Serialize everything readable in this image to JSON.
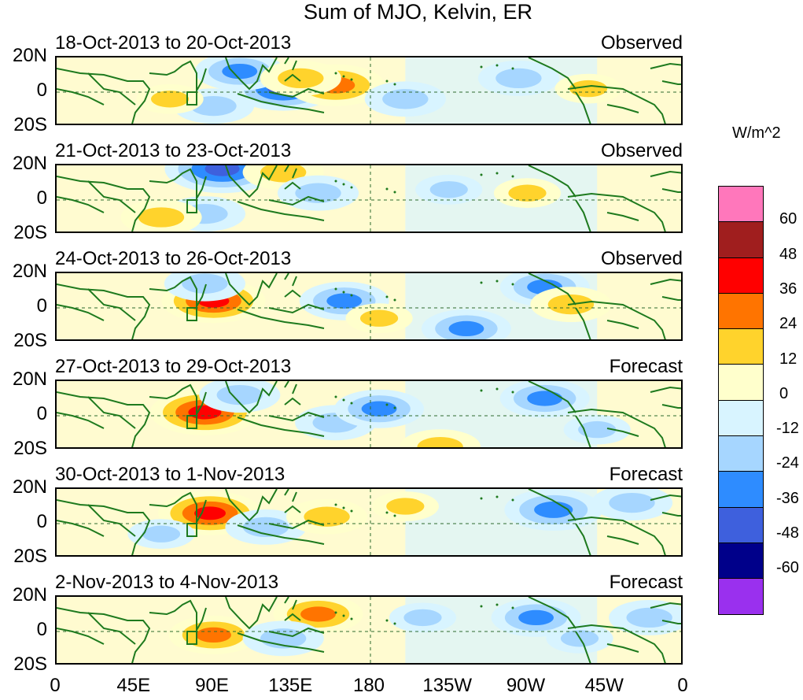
{
  "chart_data": {
    "type": "heatmap",
    "title": "Sum of MJO, Kelvin, ER",
    "units": "W/m^2",
    "x_tick_labels": [
      "0",
      "45E",
      "90E",
      "135E",
      "180",
      "135W",
      "90W",
      "45W",
      "0"
    ],
    "y_tick_labels": [
      "20N",
      "0",
      "20S"
    ],
    "colorbar": {
      "levels": [
        "60",
        "48",
        "36",
        "24",
        "12",
        "0",
        "-12",
        "-24",
        "-36",
        "-48",
        "-60"
      ],
      "colors": [
        "#ff77bb",
        "#a01e1e",
        "#ff0000",
        "#ff7400",
        "#ffd32c",
        "#ffffcc",
        "#d8f4ff",
        "#a6d6ff",
        "#2e8cff",
        "#3e60dd",
        "#00008a",
        "#9a30ee"
      ]
    },
    "panels": [
      {
        "period": "18-Oct-2013 to 20-Oct-2013",
        "status": "Observed"
      },
      {
        "period": "21-Oct-2013 to 23-Oct-2013",
        "status": "Observed"
      },
      {
        "period": "24-Oct-2013 to 26-Oct-2013",
        "status": "Observed"
      },
      {
        "period": "27-Oct-2013 to 29-Oct-2013",
        "status": "Forecast"
      },
      {
        "period": "30-Oct-2013 to 1-Nov-2013",
        "status": "Forecast"
      },
      {
        "period": "2-Nov-2013 to 4-Nov-2013",
        "status": "Forecast"
      }
    ],
    "anomalies": [
      [
        {
          "lon": 130,
          "lat": 2,
          "v": -40
        },
        {
          "lon": 105,
          "lat": 12,
          "v": -30
        },
        {
          "lon": 90,
          "lat": -8,
          "v": -24
        },
        {
          "lon": 160,
          "lat": 4,
          "v": 36
        },
        {
          "lon": 140,
          "lat": 8,
          "v": 24
        },
        {
          "lon": 65,
          "lat": -4,
          "v": 14
        },
        {
          "lon": 200,
          "lat": -4,
          "v": -24
        },
        {
          "lon": 265,
          "lat": 8,
          "v": -24
        },
        {
          "lon": 305,
          "lat": 2,
          "v": 14
        }
      ],
      [
        {
          "lon": 95,
          "lat": 18,
          "v": -48
        },
        {
          "lon": 85,
          "lat": -8,
          "v": -24
        },
        {
          "lon": 60,
          "lat": -10,
          "v": 24
        },
        {
          "lon": 130,
          "lat": 16,
          "v": 24
        },
        {
          "lon": 150,
          "lat": 4,
          "v": -24
        },
        {
          "lon": 225,
          "lat": 6,
          "v": -14
        },
        {
          "lon": 270,
          "lat": 4,
          "v": 14
        }
      ],
      [
        {
          "lon": 90,
          "lat": 4,
          "v": 40
        },
        {
          "lon": 85,
          "lat": 14,
          "v": -24
        },
        {
          "lon": 165,
          "lat": 4,
          "v": -30
        },
        {
          "lon": 185,
          "lat": -6,
          "v": 14
        },
        {
          "lon": 235,
          "lat": -12,
          "v": -30
        },
        {
          "lon": 280,
          "lat": 12,
          "v": -30
        },
        {
          "lon": 295,
          "lat": 2,
          "v": 24
        }
      ],
      [
        {
          "lon": 85,
          "lat": 2,
          "v": 44
        },
        {
          "lon": 105,
          "lat": 12,
          "v": -24
        },
        {
          "lon": 160,
          "lat": -4,
          "v": -24
        },
        {
          "lon": 185,
          "lat": 4,
          "v": -30
        },
        {
          "lon": 220,
          "lat": -18,
          "v": 24
        },
        {
          "lon": 280,
          "lat": 10,
          "v": -30
        },
        {
          "lon": 310,
          "lat": -8,
          "v": -14
        }
      ],
      [
        {
          "lon": 88,
          "lat": 6,
          "v": 40
        },
        {
          "lon": 120,
          "lat": -2,
          "v": -24
        },
        {
          "lon": 155,
          "lat": 4,
          "v": 24
        },
        {
          "lon": 200,
          "lat": 10,
          "v": 14
        },
        {
          "lon": 285,
          "lat": 8,
          "v": -36
        },
        {
          "lon": 330,
          "lat": 12,
          "v": -24
        },
        {
          "lon": 60,
          "lat": -6,
          "v": -14
        }
      ],
      [
        {
          "lon": 90,
          "lat": -2,
          "v": 30
        },
        {
          "lon": 150,
          "lat": 10,
          "v": 30
        },
        {
          "lon": 130,
          "lat": -4,
          "v": -24
        },
        {
          "lon": 210,
          "lat": 8,
          "v": -14
        },
        {
          "lon": 275,
          "lat": 8,
          "v": -30
        },
        {
          "lon": 300,
          "lat": -4,
          "v": -14
        },
        {
          "lon": 340,
          "lat": 8,
          "v": -24
        }
      ]
    ]
  }
}
